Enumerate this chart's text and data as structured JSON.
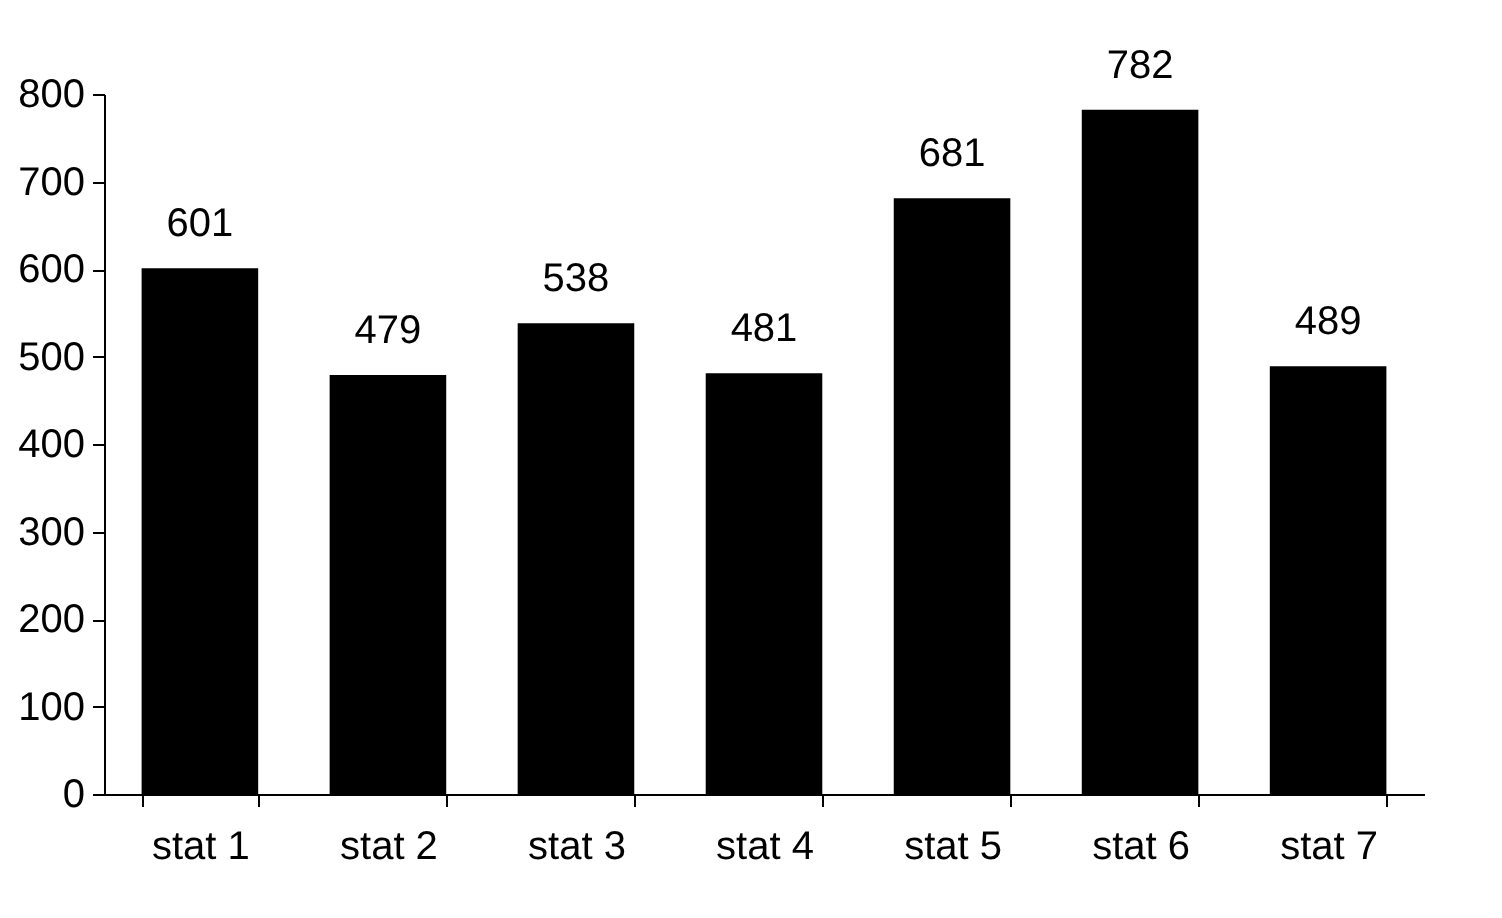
{
  "chart_data": {
    "type": "bar",
    "categories": [
      "stat 1",
      "stat 2",
      "stat 3",
      "stat 4",
      "stat 5",
      "stat 6",
      "stat 7"
    ],
    "values": [
      601,
      479,
      538,
      481,
      681,
      782,
      489
    ],
    "color": "#000000",
    "ylim": [
      0,
      800
    ],
    "yticks": [
      0,
      100,
      200,
      300,
      400,
      500,
      600,
      700,
      800
    ],
    "grid": false,
    "data_labels": true
  }
}
